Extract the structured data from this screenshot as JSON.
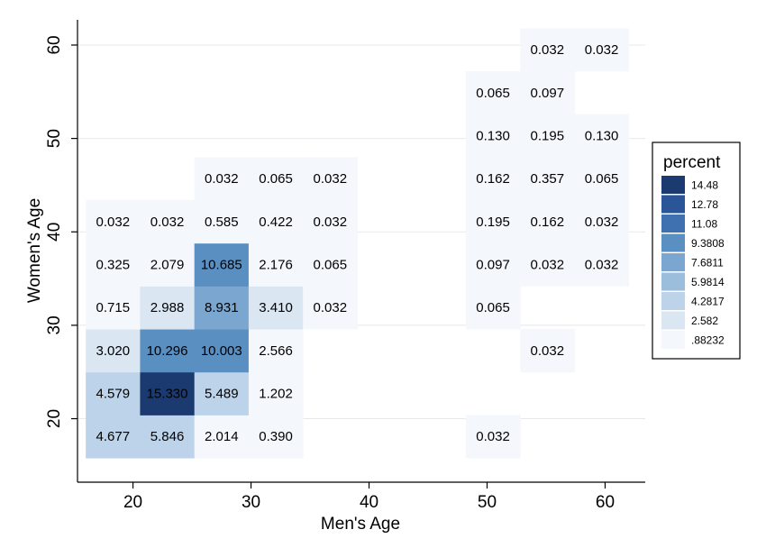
{
  "chart_data": {
    "type": "heatmap",
    "xlabel": "Men's Age",
    "ylabel": "Women's Age",
    "xlim": [
      15.3,
      63.4
    ],
    "ylim": [
      13.2,
      62.7
    ],
    "x_ticks": [
      20,
      30,
      40,
      50,
      60
    ],
    "y_ticks": [
      20,
      30,
      40,
      50,
      60
    ],
    "grid": "horizontal",
    "bin_width": 4.6,
    "x_bins": [
      18.3,
      22.9,
      27.5,
      32.1,
      36.7,
      50.5,
      55.1,
      59.7
    ],
    "y_bins": [
      18.1,
      22.7,
      27.3,
      31.9,
      36.5,
      41.1,
      45.7,
      50.3,
      54.9,
      59.5
    ],
    "cells": [
      {
        "x": 18.3,
        "y": 18.1,
        "value": "4.677"
      },
      {
        "x": 22.9,
        "y": 18.1,
        "value": "5.846"
      },
      {
        "x": 27.5,
        "y": 18.1,
        "value": "2.014"
      },
      {
        "x": 32.1,
        "y": 18.1,
        "value": "0.390"
      },
      {
        "x": 50.5,
        "y": 18.1,
        "value": "0.032"
      },
      {
        "x": 18.3,
        "y": 22.7,
        "value": "4.579"
      },
      {
        "x": 22.9,
        "y": 22.7,
        "value": "15.330"
      },
      {
        "x": 27.5,
        "y": 22.7,
        "value": "5.489"
      },
      {
        "x": 32.1,
        "y": 22.7,
        "value": "1.202"
      },
      {
        "x": 18.3,
        "y": 27.3,
        "value": "3.020"
      },
      {
        "x": 22.9,
        "y": 27.3,
        "value": "10.296"
      },
      {
        "x": 27.5,
        "y": 27.3,
        "value": "10.003"
      },
      {
        "x": 32.1,
        "y": 27.3,
        "value": "2.566"
      },
      {
        "x": 55.1,
        "y": 27.3,
        "value": "0.032"
      },
      {
        "x": 18.3,
        "y": 31.9,
        "value": "0.715"
      },
      {
        "x": 22.9,
        "y": 31.9,
        "value": "2.988"
      },
      {
        "x": 27.5,
        "y": 31.9,
        "value": "8.931"
      },
      {
        "x": 32.1,
        "y": 31.9,
        "value": "3.410"
      },
      {
        "x": 36.7,
        "y": 31.9,
        "value": "0.032"
      },
      {
        "x": 50.5,
        "y": 31.9,
        "value": "0.065"
      },
      {
        "x": 18.3,
        "y": 36.5,
        "value": "0.325"
      },
      {
        "x": 22.9,
        "y": 36.5,
        "value": "2.079"
      },
      {
        "x": 27.5,
        "y": 36.5,
        "value": "10.685"
      },
      {
        "x": 32.1,
        "y": 36.5,
        "value": "2.176"
      },
      {
        "x": 36.7,
        "y": 36.5,
        "value": "0.065"
      },
      {
        "x": 50.5,
        "y": 36.5,
        "value": "0.097"
      },
      {
        "x": 55.1,
        "y": 36.5,
        "value": "0.032"
      },
      {
        "x": 59.7,
        "y": 36.5,
        "value": "0.032"
      },
      {
        "x": 18.3,
        "y": 41.1,
        "value": "0.032"
      },
      {
        "x": 22.9,
        "y": 41.1,
        "value": "0.032"
      },
      {
        "x": 27.5,
        "y": 41.1,
        "value": "0.585"
      },
      {
        "x": 32.1,
        "y": 41.1,
        "value": "0.422"
      },
      {
        "x": 36.7,
        "y": 41.1,
        "value": "0.032"
      },
      {
        "x": 50.5,
        "y": 41.1,
        "value": "0.195"
      },
      {
        "x": 55.1,
        "y": 41.1,
        "value": "0.162"
      },
      {
        "x": 59.7,
        "y": 41.1,
        "value": "0.032"
      },
      {
        "x": 27.5,
        "y": 45.7,
        "value": "0.032"
      },
      {
        "x": 32.1,
        "y": 45.7,
        "value": "0.065"
      },
      {
        "x": 36.7,
        "y": 45.7,
        "value": "0.032"
      },
      {
        "x": 50.5,
        "y": 45.7,
        "value": "0.162"
      },
      {
        "x": 55.1,
        "y": 45.7,
        "value": "0.357"
      },
      {
        "x": 59.7,
        "y": 45.7,
        "value": "0.065"
      },
      {
        "x": 50.5,
        "y": 50.3,
        "value": "0.130"
      },
      {
        "x": 55.1,
        "y": 50.3,
        "value": "0.195"
      },
      {
        "x": 59.7,
        "y": 50.3,
        "value": "0.130"
      },
      {
        "x": 50.5,
        "y": 54.9,
        "value": "0.065"
      },
      {
        "x": 55.1,
        "y": 54.9,
        "value": "0.097"
      },
      {
        "x": 55.1,
        "y": 59.5,
        "value": "0.032"
      },
      {
        "x": 59.7,
        "y": 59.5,
        "value": "0.032"
      }
    ],
    "legend": {
      "title": "percent",
      "position": "right",
      "breaks": [
        "14.48",
        "12.78",
        "11.08",
        "9.3808",
        "7.6811",
        "5.9814",
        "4.2817",
        "2.582",
        ".88232"
      ],
      "colors": [
        "#1b3a70",
        "#2a5598",
        "#3f70b0",
        "#5a8fc2",
        "#7aa6d0",
        "#9cbedd",
        "#bcd3e9",
        "#dbe6f3",
        "#f4f8fd"
      ]
    }
  }
}
